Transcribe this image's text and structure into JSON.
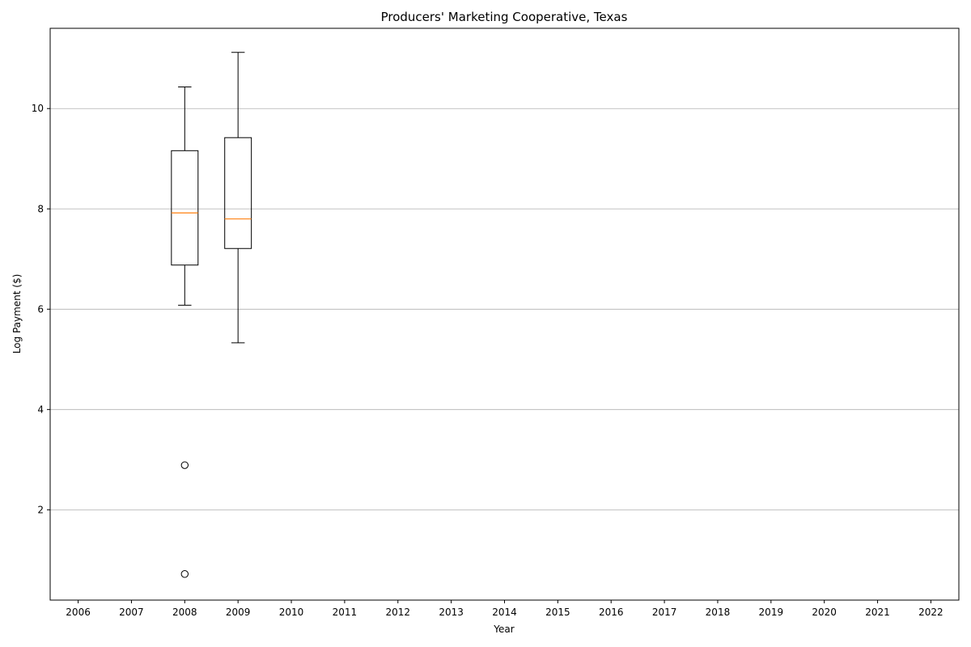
{
  "chart_data": {
    "type": "boxplot",
    "title": "Producers' Marketing Cooperative, Texas",
    "xlabel": "Year",
    "ylabel": "Log Payment ($)",
    "categories": [
      "2006",
      "2007",
      "2008",
      "2009",
      "2010",
      "2011",
      "2012",
      "2013",
      "2014",
      "2015",
      "2016",
      "2017",
      "2018",
      "2019",
      "2020",
      "2021",
      "2022"
    ],
    "ylim": [
      0.2,
      11.6
    ],
    "yticks": [
      2,
      4,
      6,
      8,
      10
    ],
    "grid": "y",
    "boxes": [
      {
        "year": "2008",
        "whisker_low": 6.08,
        "q1": 6.88,
        "median": 7.92,
        "q3": 9.16,
        "whisker_high": 10.43,
        "outliers": [
          2.89,
          0.72
        ]
      },
      {
        "year": "2009",
        "whisker_low": 5.33,
        "q1": 7.21,
        "median": 7.8,
        "q3": 9.42,
        "whisker_high": 11.12,
        "outliers": []
      }
    ],
    "colors": {
      "box": "#000000",
      "median": "#ff7f0e",
      "grid": "#b0b0b0"
    }
  }
}
